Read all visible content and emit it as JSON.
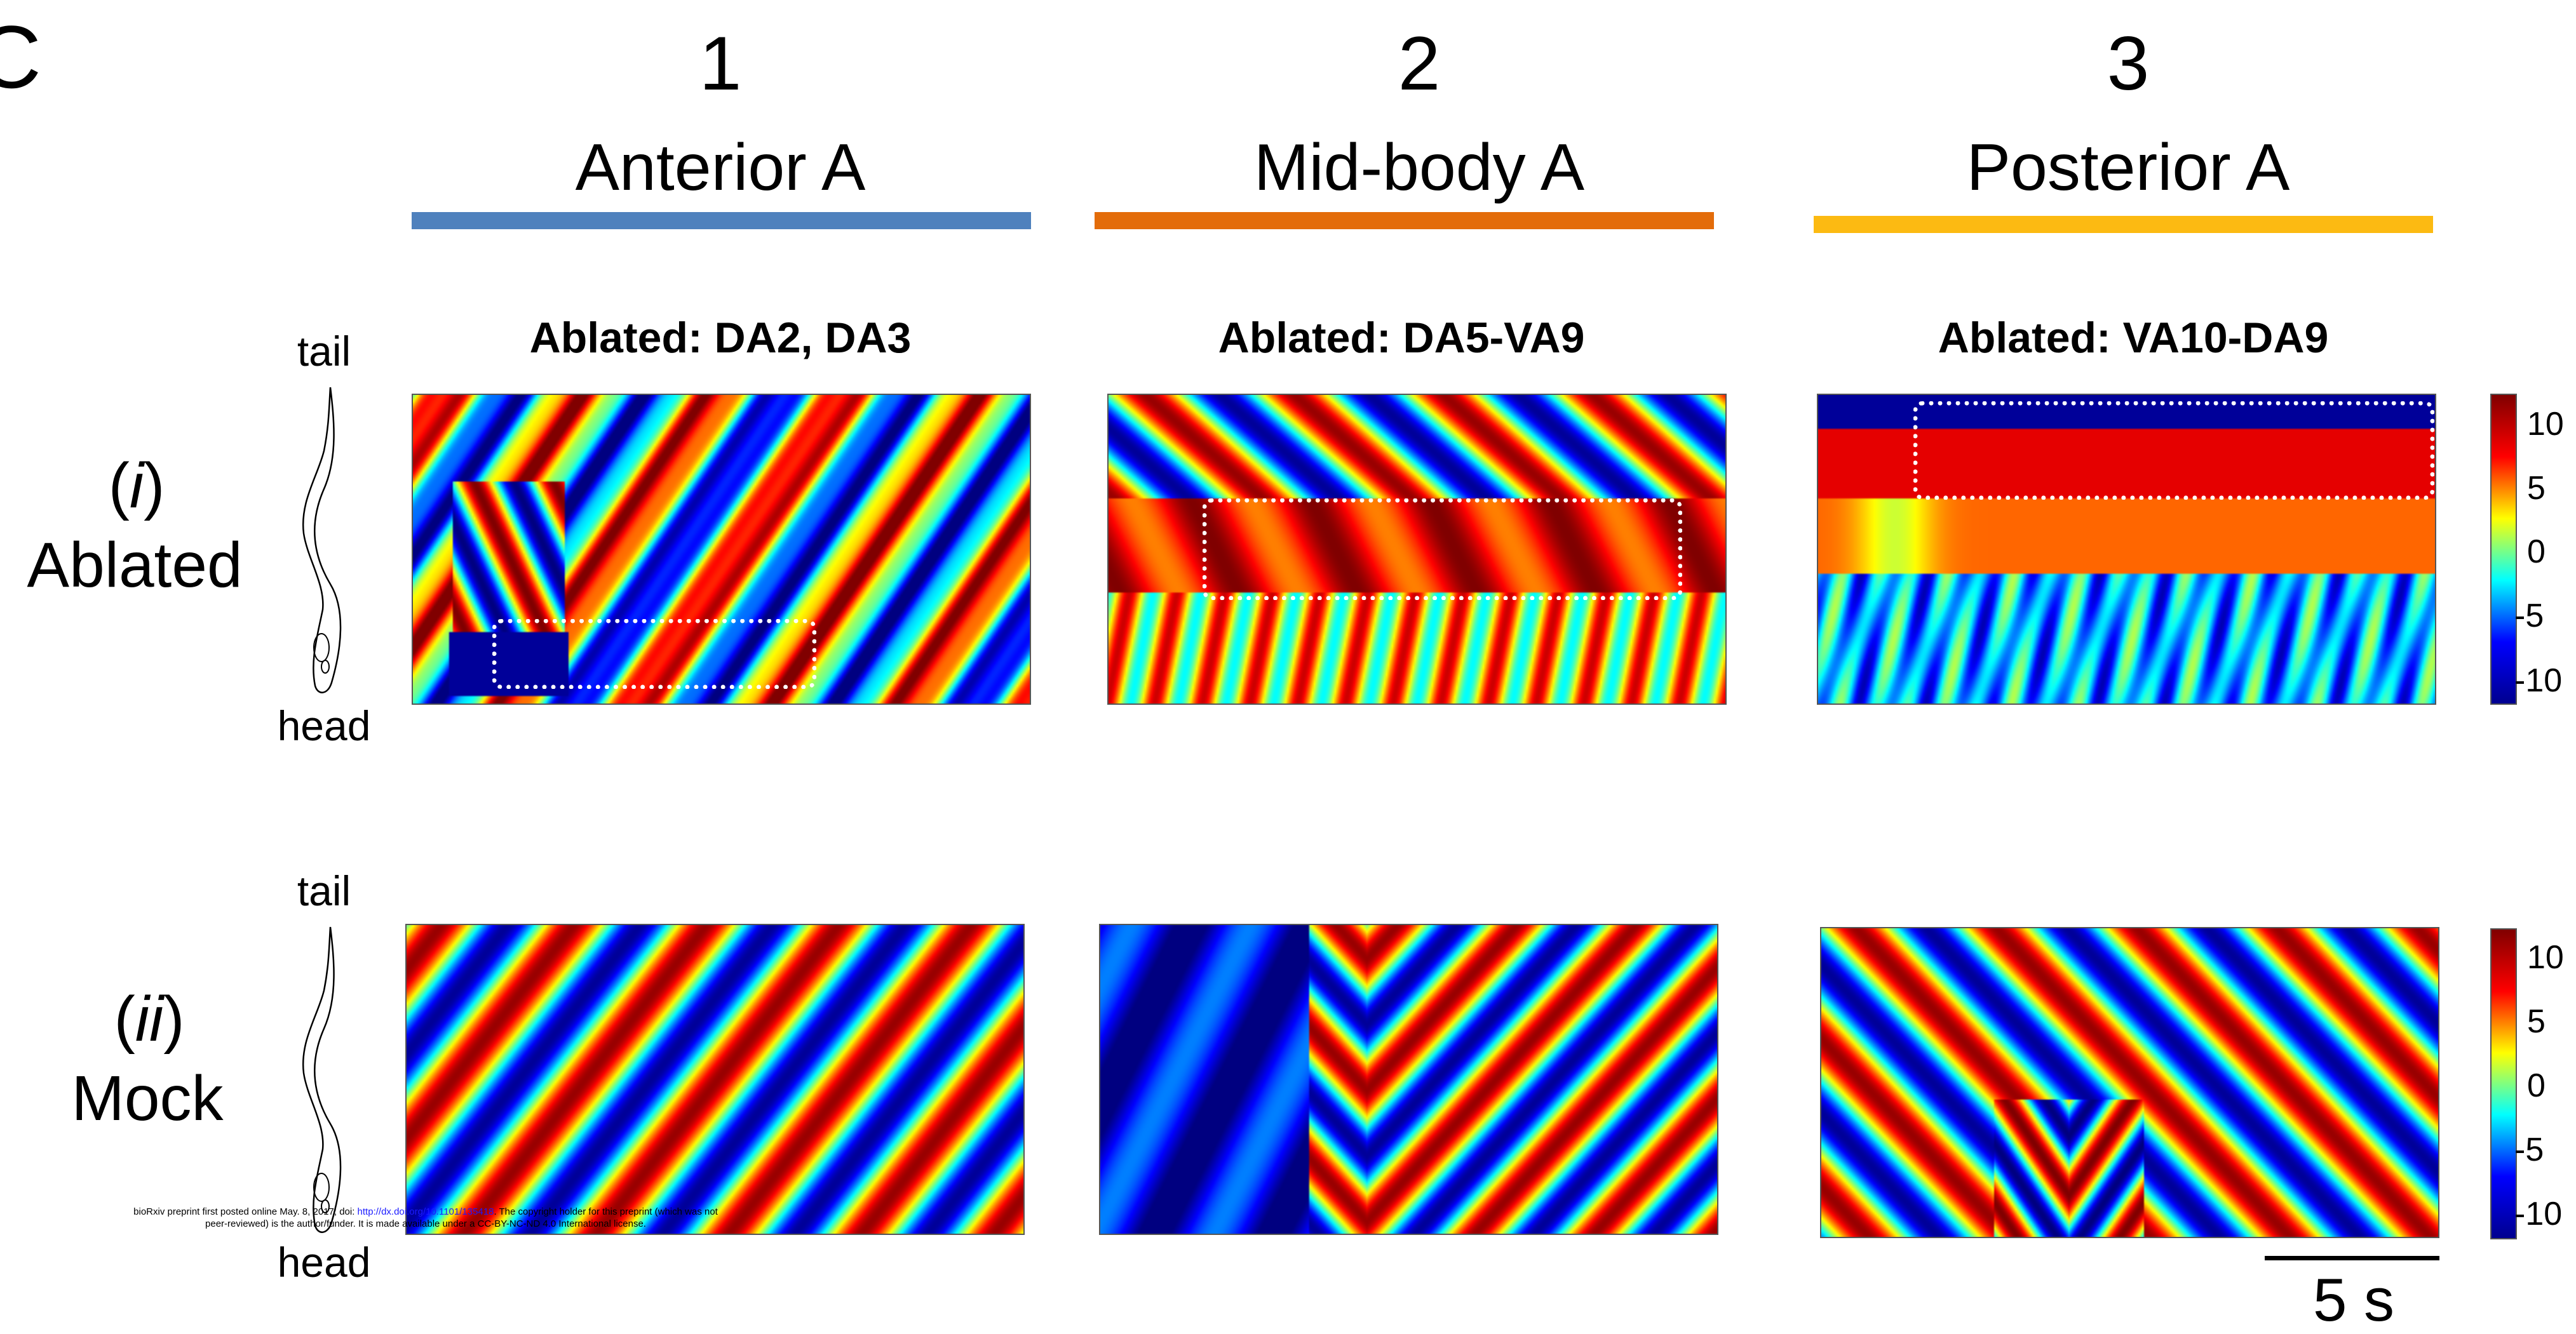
{
  "panel_letter": "C",
  "columns": [
    {
      "number": "1",
      "name": "Anterior A",
      "color": "#4f81bd",
      "title": "Ablated: DA2, DA3"
    },
    {
      "number": "2",
      "name": "Mid-body A",
      "color": "#e36c0a",
      "title": "Ablated: DA5-VA9"
    },
    {
      "number": "3",
      "name": "Posterior A",
      "color": "#fcba12",
      "title": "Ablated: VA10-DA9"
    }
  ],
  "rows": [
    {
      "roman": "i",
      "name": "Ablated",
      "tail": "tail",
      "head": "head"
    },
    {
      "roman": "ii",
      "name": "Mock",
      "tail": "tail",
      "head": "head"
    }
  ],
  "colorbar": {
    "ticks": [
      "10",
      "5",
      "0",
      "-5",
      "-10"
    ],
    "min": -12,
    "max": 12
  },
  "scale_bar": {
    "label": "5 s"
  },
  "footer": {
    "line1_prefix": "bioRxiv preprint first posted online May. 8, 2017; doi: ",
    "link": "http://dx.doi.org/10.1101/135418",
    "line1_suffix": ". The copyright holder for this preprint (which was not",
    "line2": "peer-reviewed) is the author/funder. It is made available under a CC-BY-NC-ND 4.0 International license."
  },
  "palette": {
    "jet": [
      "#00008f",
      "#0000ff",
      "#00ffff",
      "#ffff00",
      "#ff0000",
      "#800000"
    ],
    "box": "#ffffff"
  }
}
